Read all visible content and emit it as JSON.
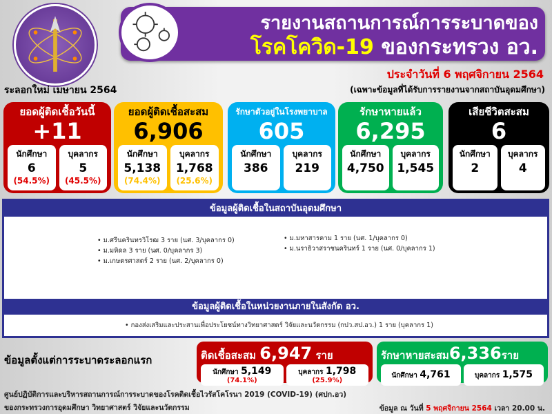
{
  "header": {
    "title_line1": "รายงานสถานการณ์การระบาดของ",
    "title_line2_highlight": "โรคโควิด-19",
    "title_line2_rest": "ของกระทรวง อว.",
    "date": "ประจำวันที่ 6 พฤศจิกายน 2564",
    "wave": "ระลอกใหม่ เมษายน 2564",
    "note": "(เฉพาะข้อมูลที่ได้รับการรายงานจากสถาบันอุดมศึกษา)",
    "banner_color": "#7030a0",
    "logo_icon": "ministry-logo",
    "virus_icon": "virus-icon"
  },
  "cards": [
    {
      "title": "ยอดผู้ติดเชื้อวันนี้",
      "value": "+11",
      "student_label": "นักศึกษา",
      "student": "6",
      "student_pct": "(54.5%)",
      "staff_label": "บุคลากร",
      "staff": "5",
      "staff_pct": "(45.5%)",
      "color": "#c00000"
    },
    {
      "title": "ยอดผู้ติดเชื้อสะสม",
      "value": "6,906",
      "student_label": "นักศึกษา",
      "student": "5,138",
      "student_pct": "(74.4%)",
      "staff_label": "บุคลากร",
      "staff": "1,768",
      "staff_pct": "(25.6%)",
      "color": "#ffc000"
    },
    {
      "title": "รักษาตัวอยู่ในโรงพยาบาล",
      "value": "605",
      "student_label": "นักศึกษา",
      "student": "386",
      "staff_label": "บุคลากร",
      "staff": "219",
      "color": "#00b0f0"
    },
    {
      "title": "รักษาหายแล้ว",
      "value": "6,295",
      "student_label": "นักศึกษา",
      "student": "4,750",
      "staff_label": "บุคลากร",
      "staff": "1,545",
      "color": "#00b050"
    },
    {
      "title": "เสียชีวิตสะสม",
      "value": "6",
      "student_label": "นักศึกษา",
      "student": "2",
      "staff_label": "บุคลากร",
      "staff": "4",
      "color": "#000000"
    }
  ],
  "institutions": {
    "title": "ข้อมูลผู้ติดเชื้อในสถาบันอุดมศึกษา",
    "left": [
      "ม.ศรีนครินทรวิโรฒ 3 ราย (นศ. 3/บุคลากร 0)",
      "ม.มหิดล 3 ราย (นศ. 0/บุคลากร 3)",
      "ม.เกษตรศาสตร์ 2 ราย (นศ. 2/บุคลากร 0)"
    ],
    "right": [
      "ม.มหาสารคาม 1 ราย (นศ. 1/บุคลากร 0)",
      "ม.นราธิวาสราชนครินทร์ 1 ราย (นศ. 0/บุคลากร 1)"
    ]
  },
  "agencies": {
    "title": "ข้อมูลผู้ติดเชื้อในหน่วยงานภายในสังกัด อว.",
    "items": [
      "กองส่งเสริมและประสานเพื่อประโยชน์ทางวิทยาศาสตร์ วิจัยและนวัตกรรม (กปว.สป.อว.) 1 ราย (บุคลากร 1)"
    ]
  },
  "since_first": {
    "label": "ข้อมูลตั้งแต่การระบาดระลอกแรก",
    "infected": {
      "title": "ติดเชื้อสะสม",
      "value": "6,947",
      "unit": "ราย",
      "student_label": "นักศึกษา",
      "student": "5,149",
      "student_pct": "(74.1%)",
      "staff_label": "บุคลากร",
      "staff": "1,798",
      "staff_pct": "(25.9%)"
    },
    "recovered": {
      "title": "รักษาหายสะสม",
      "value": "6,336",
      "unit": "ราย",
      "student_label": "นักศึกษา",
      "student": "4,761",
      "staff_label": "บุคลากร",
      "staff": "1,575"
    }
  },
  "footer": {
    "line1": "ศูนย์ปฏิบัติการและบริหารสถานการณ์การระบาดของโรคติดเชื้อไวรัสโคโรนา 2019 (COVID-19) (ศปก.อว)",
    "line2": "ของกระทรวงการอุดมศึกษา วิทยาศาสตร์ วิจัยและนวัตกรรม",
    "asof_prefix": "ข้อมูล ณ วันที่",
    "asof_date": "5 พฤศจิกายน 2564",
    "asof_suffix": "เวลา 20.00 น."
  }
}
